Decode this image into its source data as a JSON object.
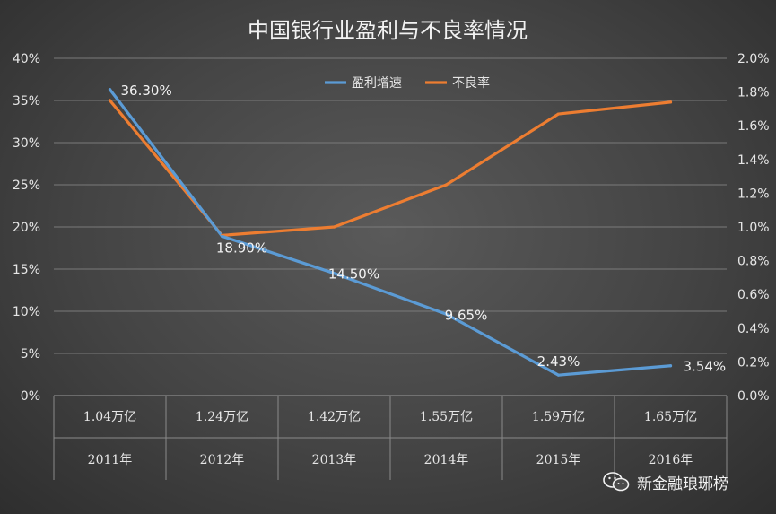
{
  "chart_data": {
    "type": "line",
    "title": "中国银行业盈利与不良率情况",
    "categories": [
      "2011年",
      "2012年",
      "2013年",
      "2014年",
      "2015年",
      "2016年"
    ],
    "profit_totals": [
      "1.04万亿",
      "1.24万亿",
      "1.42万亿",
      "1.55万亿",
      "1.59万亿",
      "1.65万亿"
    ],
    "left_axis": {
      "ylim": [
        0,
        40
      ],
      "ticks": [
        0,
        5,
        10,
        15,
        20,
        25,
        30,
        35,
        40
      ],
      "tick_labels": [
        "0%",
        "5%",
        "10%",
        "15%",
        "20%",
        "25%",
        "30%",
        "35%",
        "40%"
      ]
    },
    "right_axis": {
      "ylim": [
        0,
        2.0
      ],
      "ticks": [
        0,
        0.2,
        0.4,
        0.6,
        0.8,
        1.0,
        1.2,
        1.4,
        1.6,
        1.8,
        2.0
      ],
      "tick_labels": [
        "0.0%",
        "0.2%",
        "0.4%",
        "0.6%",
        "0.8%",
        "1.0%",
        "1.2%",
        "1.4%",
        "1.6%",
        "1.8%",
        "2.0%"
      ]
    },
    "series": [
      {
        "name": "盈利增速",
        "axis": "left",
        "color": "#5b9bd5",
        "values": [
          36.3,
          18.9,
          14.5,
          9.65,
          2.43,
          3.54
        ],
        "labels": [
          "36.30%",
          "18.90%",
          "14.50%",
          "9.65%",
          "2.43%",
          "3.54%"
        ]
      },
      {
        "name": "不良率",
        "axis": "right",
        "color": "#ed7d31",
        "values": [
          1.75,
          0.95,
          1.0,
          1.25,
          1.67,
          1.74
        ]
      }
    ],
    "legend_position": "top-center"
  },
  "watermark": {
    "text": "新金融琅琊榜"
  }
}
